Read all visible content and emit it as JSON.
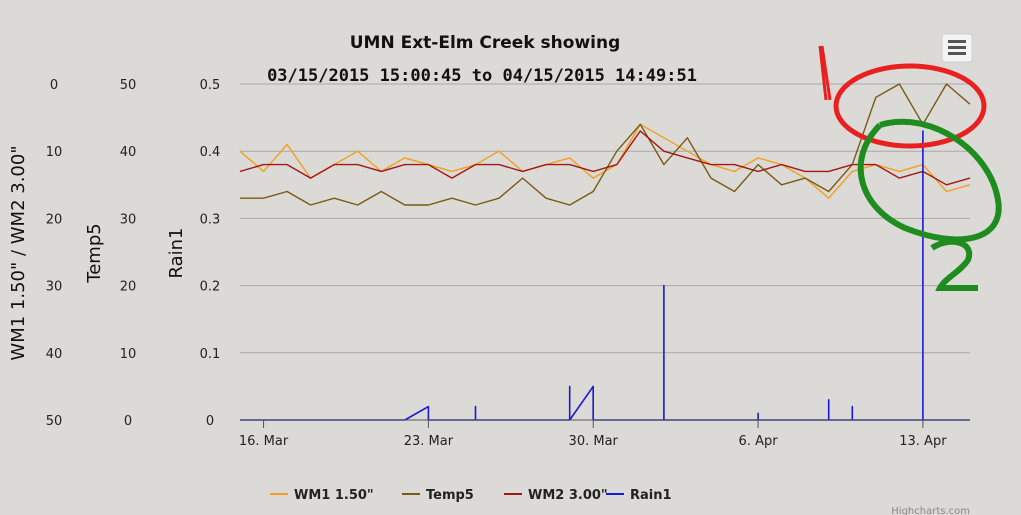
{
  "chart_data": {
    "type": "line",
    "title": "UMN Ext-Elm Creek showing",
    "subtitle": "03/15/2015 15:00:45 to 04/15/2015 14:49:51",
    "x_ticks": [
      "16. Mar",
      "23. Mar",
      "30. Mar",
      "6. Apr",
      "13. Apr"
    ],
    "x_range": [
      "2015-03-15",
      "2015-04-15"
    ],
    "grid": true,
    "legend_position": "bottom",
    "credit": "Highcharts.com",
    "menu_icon": "hamburger-menu-icon",
    "y_axes": [
      {
        "title": "WM1 1.50\" / WM2 3.00\"",
        "ticks": [
          "0",
          "10",
          "20",
          "30",
          "40",
          "50"
        ],
        "range": [
          50,
          0
        ],
        "reversed": true
      },
      {
        "title": "Temp5",
        "ticks": [
          "50",
          "40",
          "30",
          "20",
          "10",
          "0"
        ],
        "range": [
          0,
          50
        ]
      },
      {
        "title": "Rain1",
        "ticks": [
          "0.5",
          "0.4",
          "0.3",
          "0.2",
          "0.1",
          "0"
        ],
        "range": [
          0,
          0.5
        ]
      }
    ],
    "series": [
      {
        "name": "WM1 1.50\"",
        "color": "#f0a020",
        "axis": 0,
        "points": [
          [
            "2015-03-15",
            10
          ],
          [
            "2015-03-16",
            13
          ],
          [
            "2015-03-17",
            9
          ],
          [
            "2015-03-18",
            14
          ],
          [
            "2015-03-19",
            12
          ],
          [
            "2015-03-20",
            10
          ],
          [
            "2015-03-21",
            13
          ],
          [
            "2015-03-22",
            11
          ],
          [
            "2015-03-23",
            12
          ],
          [
            "2015-03-24",
            13
          ],
          [
            "2015-03-25",
            12
          ],
          [
            "2015-03-26",
            10
          ],
          [
            "2015-03-27",
            13
          ],
          [
            "2015-03-28",
            12
          ],
          [
            "2015-03-29",
            11
          ],
          [
            "2015-03-30",
            14
          ],
          [
            "2015-03-31",
            12
          ],
          [
            "2015-04-01",
            6
          ],
          [
            "2015-04-02",
            8
          ],
          [
            "2015-04-03",
            10
          ],
          [
            "2015-04-04",
            12
          ],
          [
            "2015-04-05",
            13
          ],
          [
            "2015-04-06",
            11
          ],
          [
            "2015-04-07",
            12
          ],
          [
            "2015-04-08",
            14
          ],
          [
            "2015-04-09",
            17
          ],
          [
            "2015-04-10",
            13
          ],
          [
            "2015-04-11",
            12
          ],
          [
            "2015-04-12",
            13
          ],
          [
            "2015-04-13",
            12
          ],
          [
            "2015-04-14",
            16
          ],
          [
            "2015-04-15",
            15
          ]
        ]
      },
      {
        "name": "Temp5",
        "color": "#7a5a14",
        "axis": 1,
        "points": [
          [
            "2015-03-15",
            33
          ],
          [
            "2015-03-16",
            33
          ],
          [
            "2015-03-17",
            34
          ],
          [
            "2015-03-18",
            32
          ],
          [
            "2015-03-19",
            33
          ],
          [
            "2015-03-20",
            32
          ],
          [
            "2015-03-21",
            34
          ],
          [
            "2015-03-22",
            32
          ],
          [
            "2015-03-23",
            32
          ],
          [
            "2015-03-24",
            33
          ],
          [
            "2015-03-25",
            32
          ],
          [
            "2015-03-26",
            33
          ],
          [
            "2015-03-27",
            36
          ],
          [
            "2015-03-28",
            33
          ],
          [
            "2015-03-29",
            32
          ],
          [
            "2015-03-30",
            34
          ],
          [
            "2015-03-31",
            40
          ],
          [
            "2015-04-01",
            44
          ],
          [
            "2015-04-02",
            38
          ],
          [
            "2015-04-03",
            42
          ],
          [
            "2015-04-04",
            36
          ],
          [
            "2015-04-05",
            34
          ],
          [
            "2015-04-06",
            38
          ],
          [
            "2015-04-07",
            35
          ],
          [
            "2015-04-08",
            36
          ],
          [
            "2015-04-09",
            34
          ],
          [
            "2015-04-10",
            38
          ],
          [
            "2015-04-11",
            48
          ],
          [
            "2015-04-12",
            50
          ],
          [
            "2015-04-13",
            44
          ],
          [
            "2015-04-14",
            50
          ],
          [
            "2015-04-15",
            47
          ]
        ]
      },
      {
        "name": "WM2 3.00\"",
        "color": "#a01818",
        "axis": 0,
        "points": [
          [
            "2015-03-15",
            13
          ],
          [
            "2015-03-16",
            12
          ],
          [
            "2015-03-17",
            12
          ],
          [
            "2015-03-18",
            14
          ],
          [
            "2015-03-19",
            12
          ],
          [
            "2015-03-20",
            12
          ],
          [
            "2015-03-21",
            13
          ],
          [
            "2015-03-22",
            12
          ],
          [
            "2015-03-23",
            12
          ],
          [
            "2015-03-24",
            14
          ],
          [
            "2015-03-25",
            12
          ],
          [
            "2015-03-26",
            12
          ],
          [
            "2015-03-27",
            13
          ],
          [
            "2015-03-28",
            12
          ],
          [
            "2015-03-29",
            12
          ],
          [
            "2015-03-30",
            13
          ],
          [
            "2015-03-31",
            12
          ],
          [
            "2015-04-01",
            7
          ],
          [
            "2015-04-02",
            10
          ],
          [
            "2015-04-03",
            11
          ],
          [
            "2015-04-04",
            12
          ],
          [
            "2015-04-05",
            12
          ],
          [
            "2015-04-06",
            13
          ],
          [
            "2015-04-07",
            12
          ],
          [
            "2015-04-08",
            13
          ],
          [
            "2015-04-09",
            13
          ],
          [
            "2015-04-10",
            12
          ],
          [
            "2015-04-11",
            12
          ],
          [
            "2015-04-12",
            14
          ],
          [
            "2015-04-13",
            13
          ],
          [
            "2015-04-14",
            15
          ],
          [
            "2015-04-15",
            14
          ]
        ]
      },
      {
        "name": "Rain1",
        "color": "#1a1ad6",
        "axis": 2,
        "points": [
          [
            "2015-03-15",
            0
          ],
          [
            "2015-03-22",
            0
          ],
          [
            "2015-03-23",
            0.02
          ],
          [
            "2015-03-23",
            0
          ],
          [
            "2015-03-25",
            0
          ],
          [
            "2015-03-25",
            0.02
          ],
          [
            "2015-03-25",
            0
          ],
          [
            "2015-03-29",
            0
          ],
          [
            "2015-03-29",
            0.05
          ],
          [
            "2015-03-29",
            0
          ],
          [
            "2015-03-30",
            0.05
          ],
          [
            "2015-03-30",
            0
          ],
          [
            "2015-04-02",
            0
          ],
          [
            "2015-04-02",
            0.2
          ],
          [
            "2015-04-02",
            0
          ],
          [
            "2015-04-06",
            0
          ],
          [
            "2015-04-06",
            0.01
          ],
          [
            "2015-04-06",
            0
          ],
          [
            "2015-04-09",
            0
          ],
          [
            "2015-04-09",
            0.03
          ],
          [
            "2015-04-09",
            0
          ],
          [
            "2015-04-10",
            0
          ],
          [
            "2015-04-10",
            0.02
          ],
          [
            "2015-04-10",
            0
          ],
          [
            "2015-04-13",
            0
          ],
          [
            "2015-04-13",
            0.43
          ],
          [
            "2015-04-13",
            0
          ],
          [
            "2015-04-15",
            0
          ]
        ]
      }
    ],
    "annotations": [
      "1",
      "2"
    ]
  }
}
